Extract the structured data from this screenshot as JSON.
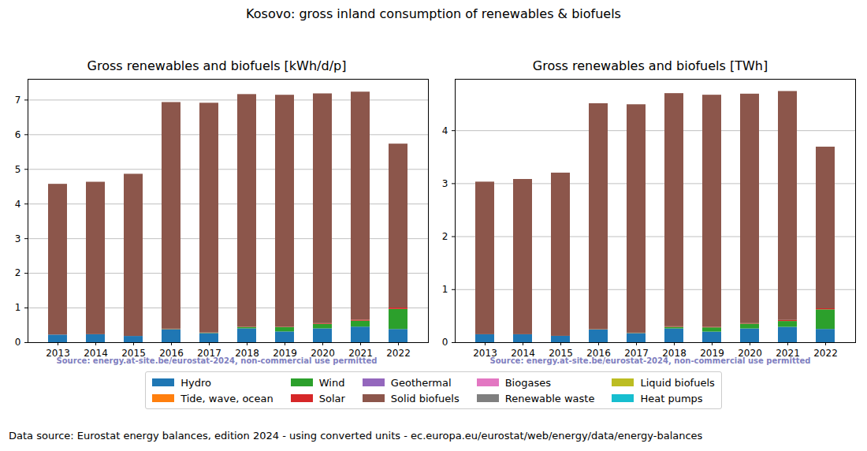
{
  "title": "Kosovo: gross inland consumption of renewables & biofuels",
  "note": "Data source: Eurostat energy balances, edition 2024 - using converted units - ec.europa.eu/eurostat/web/energy/data/energy-balances",
  "chart_data": [
    {
      "type": "bar",
      "title": "Gross renewables and biofuels [kWh/d/p]",
      "stacked": true,
      "grid": true,
      "annotations": [
        "Source: energy.at-site.be/eurostat-2024, non-commercial use permitted"
      ],
      "categories": [
        "2013",
        "2014",
        "2015",
        "2016",
        "2017",
        "2018",
        "2019",
        "2020",
        "2021",
        "2022"
      ],
      "ylim": [
        0,
        7.6
      ],
      "yticks": [
        0,
        1,
        2,
        3,
        4,
        5,
        6,
        7
      ],
      "series": [
        {
          "name": "Hydro",
          "color": "#1f77b4",
          "values": [
            0.22,
            0.23,
            0.18,
            0.37,
            0.26,
            0.4,
            0.31,
            0.4,
            0.45,
            0.38
          ]
        },
        {
          "name": "Tide, wave, ocean",
          "color": "#ff7f0e",
          "values": [
            0,
            0,
            0,
            0,
            0,
            0,
            0,
            0,
            0,
            0
          ]
        },
        {
          "name": "Wind",
          "color": "#2ca02c",
          "values": [
            0,
            0,
            0,
            0.01,
            0.01,
            0.04,
            0.13,
            0.13,
            0.17,
            0.58
          ]
        },
        {
          "name": "Solar",
          "color": "#d62728",
          "values": [
            0,
            0,
            0,
            0.01,
            0.01,
            0.01,
            0.01,
            0.02,
            0.03,
            0.04
          ]
        },
        {
          "name": "Geothermal",
          "color": "#9467bd",
          "values": [
            0,
            0,
            0,
            0,
            0,
            0,
            0,
            0,
            0,
            0
          ]
        },
        {
          "name": "Solid biofuels",
          "color": "#8c564b",
          "values": [
            4.35,
            4.4,
            4.68,
            6.54,
            6.63,
            6.71,
            6.69,
            6.63,
            6.58,
            4.73
          ]
        },
        {
          "name": "Biogases",
          "color": "#e377c2",
          "values": [
            0,
            0,
            0,
            0,
            0,
            0,
            0,
            0,
            0,
            0
          ]
        },
        {
          "name": "Renewable waste",
          "color": "#7f7f7f",
          "values": [
            0,
            0,
            0,
            0,
            0,
            0,
            0,
            0,
            0,
            0
          ]
        },
        {
          "name": "Liquid biofuels",
          "color": "#bcbd22",
          "values": [
            0,
            0,
            0,
            0,
            0,
            0,
            0,
            0,
            0,
            0
          ]
        },
        {
          "name": "Heat pumps",
          "color": "#17becf",
          "values": [
            0,
            0,
            0,
            0,
            0,
            0,
            0,
            0,
            0,
            0
          ]
        }
      ]
    },
    {
      "type": "bar",
      "title": "Gross renewables and biofuels [TWh]",
      "stacked": true,
      "grid": true,
      "annotations": [
        "Source: energy.at-site.be/eurostat-2024, non-commercial use permitted"
      ],
      "categories": [
        "2013",
        "2014",
        "2015",
        "2016",
        "2017",
        "2018",
        "2019",
        "2020",
        "2021",
        "2022"
      ],
      "ylim": [
        0,
        4.97
      ],
      "yticks": [
        0,
        1,
        2,
        3,
        4
      ],
      "series": [
        {
          "name": "Hydro",
          "color": "#1f77b4",
          "values": [
            0.15,
            0.15,
            0.12,
            0.24,
            0.17,
            0.26,
            0.2,
            0.26,
            0.29,
            0.25
          ]
        },
        {
          "name": "Tide, wave, ocean",
          "color": "#ff7f0e",
          "values": [
            0,
            0,
            0,
            0,
            0,
            0,
            0,
            0,
            0,
            0
          ]
        },
        {
          "name": "Wind",
          "color": "#2ca02c",
          "values": [
            0,
            0,
            0,
            0.005,
            0.005,
            0.03,
            0.08,
            0.09,
            0.11,
            0.37
          ]
        },
        {
          "name": "Solar",
          "color": "#d62728",
          "values": [
            0,
            0,
            0,
            0.005,
            0.005,
            0.01,
            0.01,
            0.01,
            0.02,
            0.02
          ]
        },
        {
          "name": "Geothermal",
          "color": "#9467bd",
          "values": [
            0,
            0,
            0,
            0,
            0,
            0,
            0,
            0,
            0,
            0
          ]
        },
        {
          "name": "Solid biofuels",
          "color": "#8c564b",
          "values": [
            2.88,
            2.93,
            3.08,
            4.26,
            4.31,
            4.4,
            4.38,
            4.33,
            4.32,
            3.05
          ]
        },
        {
          "name": "Biogases",
          "color": "#e377c2",
          "values": [
            0,
            0,
            0,
            0,
            0,
            0,
            0,
            0,
            0,
            0
          ]
        },
        {
          "name": "Renewable waste",
          "color": "#7f7f7f",
          "values": [
            0,
            0,
            0,
            0,
            0,
            0,
            0,
            0,
            0,
            0
          ]
        },
        {
          "name": "Liquid biofuels",
          "color": "#bcbd22",
          "values": [
            0,
            0,
            0,
            0,
            0,
            0,
            0,
            0,
            0,
            0
          ]
        },
        {
          "name": "Heat pumps",
          "color": "#17becf",
          "values": [
            0,
            0,
            0,
            0,
            0,
            0,
            0,
            0,
            0,
            0
          ]
        }
      ]
    }
  ]
}
